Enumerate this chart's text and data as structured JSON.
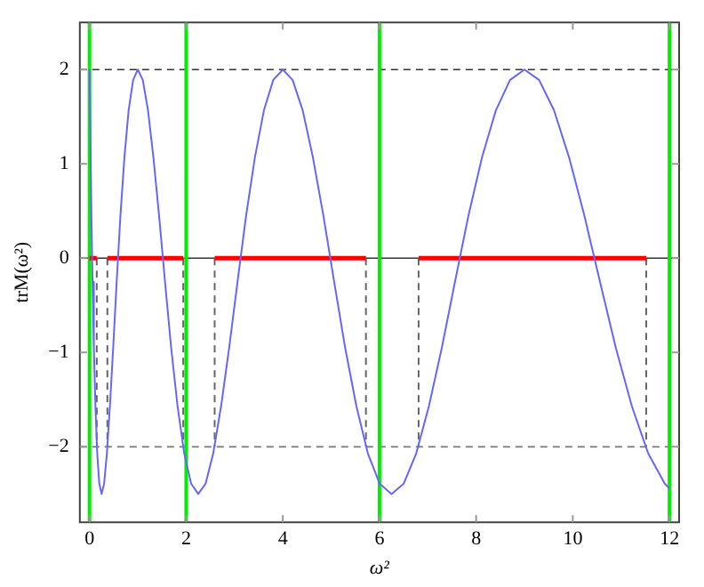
{
  "chart_data": {
    "type": "line",
    "xlabel": "ω²",
    "ylabel": "trM(ω²)",
    "xlim": [
      -0.2,
      12.2
    ],
    "ylim": [
      -2.8,
      2.5
    ],
    "xticks": [
      0,
      2,
      4,
      6,
      8,
      10,
      12
    ],
    "yticks": [
      -2,
      -1,
      0,
      1,
      2
    ],
    "grid": false,
    "legend": false,
    "marker": "none",
    "series": [
      {
        "color": "#6666ff",
        "x": [
          0,
          0.04,
          0.0625,
          0.09,
          0.1225,
          0.16,
          0.2025,
          0.25,
          0.3025,
          0.36,
          0.4225,
          0.49,
          0.5625,
          0.64,
          0.7225,
          0.81,
          0.9025,
          1,
          1.1025,
          1.21,
          1.3225,
          1.44,
          1.5625,
          1.69,
          1.8225,
          1.96,
          2.1025,
          2.25,
          2.4025,
          2.56,
          2.7225,
          2.89,
          3.0625,
          3.24,
          3.4225,
          3.61,
          3.8025,
          4,
          4.2025,
          4.41,
          4.6225,
          4.84,
          5.0625,
          5.29,
          5.5225,
          5.76,
          6.0025,
          6.25,
          6.5025,
          6.76,
          7.0225,
          7.29,
          7.5625,
          7.84,
          8.1225,
          8.41,
          8.7025,
          9,
          9.3025,
          9.61,
          9.9225,
          10.24,
          10.5625,
          10.89,
          11.2225,
          11.56,
          11.9025,
          12
        ],
        "values": [
          2,
          0.45,
          -0.25,
          -0.95,
          -1.57,
          -2.07,
          -2.39,
          -2.5,
          -2.39,
          -2.07,
          -1.57,
          -0.95,
          -0.25,
          0.45,
          1.07,
          1.57,
          1.89,
          2,
          1.89,
          1.57,
          1.07,
          0.45,
          -0.25,
          -0.95,
          -1.57,
          -2.07,
          -2.39,
          -2.5,
          -2.39,
          -2.07,
          -1.57,
          -0.95,
          -0.25,
          0.45,
          1.07,
          1.57,
          1.89,
          2,
          1.89,
          1.57,
          1.07,
          0.45,
          -0.25,
          -0.95,
          -1.57,
          -2.07,
          -2.39,
          -2.5,
          -2.39,
          -2.07,
          -1.57,
          -0.95,
          -0.25,
          0.45,
          1.07,
          1.57,
          1.89,
          2,
          1.89,
          1.57,
          1.07,
          0.45,
          -0.25,
          -0.95,
          -1.57,
          -2.07,
          -2.39,
          -2.44
        ]
      },
      {
        "color": "#ff0000",
        "x": [
          0,
          0.15
        ],
        "values": [
          0,
          0
        ]
      },
      {
        "color": "#ff0000",
        "x": [
          0.37,
          1.94
        ],
        "values": [
          0,
          0
        ]
      },
      {
        "color": "#ff0000",
        "x": [
          2.59,
          5.72
        ],
        "values": [
          0,
          0
        ]
      },
      {
        "color": "#ff0000",
        "x": [
          6.81,
          11.52
        ],
        "values": [
          0,
          0
        ]
      },
      {
        "color": "#666666",
        "line_style": "dashed",
        "x": [
          0.15,
          0.15
        ],
        "values": [
          0,
          -2
        ]
      },
      {
        "color": "#666666",
        "line_style": "dashed",
        "x": [
          0.37,
          0.37
        ],
        "values": [
          0,
          -2
        ]
      },
      {
        "color": "#666666",
        "line_style": "dashed",
        "x": [
          1.94,
          1.94
        ],
        "values": [
          0,
          -2
        ]
      },
      {
        "color": "#666666",
        "line_style": "dashed",
        "x": [
          2.59,
          2.59
        ],
        "values": [
          0,
          -2
        ]
      },
      {
        "color": "#666666",
        "line_style": "dashed",
        "x": [
          5.72,
          5.72
        ],
        "values": [
          0,
          -2
        ]
      },
      {
        "color": "#666666",
        "line_style": "dashed",
        "x": [
          6.81,
          6.81
        ],
        "values": [
          0,
          -2
        ]
      },
      {
        "color": "#666666",
        "line_style": "dashed",
        "x": [
          11.52,
          11.52
        ],
        "values": [
          0,
          -2
        ]
      }
    ],
    "ref_lines": [
      {
        "axis": "y",
        "value": 2,
        "color": "#333333",
        "line_style": "dashed"
      },
      {
        "axis": "y",
        "value": -2,
        "color": "#777777",
        "line_style": "dashed"
      },
      {
        "axis": "y",
        "value": 0,
        "color": "#333333"
      },
      {
        "axis": "x",
        "value": 0,
        "color": "#00ee00"
      },
      {
        "axis": "x",
        "value": 2,
        "color": "#00ee00"
      },
      {
        "axis": "x",
        "value": 6,
        "color": "#00ee00"
      },
      {
        "axis": "x",
        "value": 12,
        "color": "#00ee00"
      }
    ]
  }
}
